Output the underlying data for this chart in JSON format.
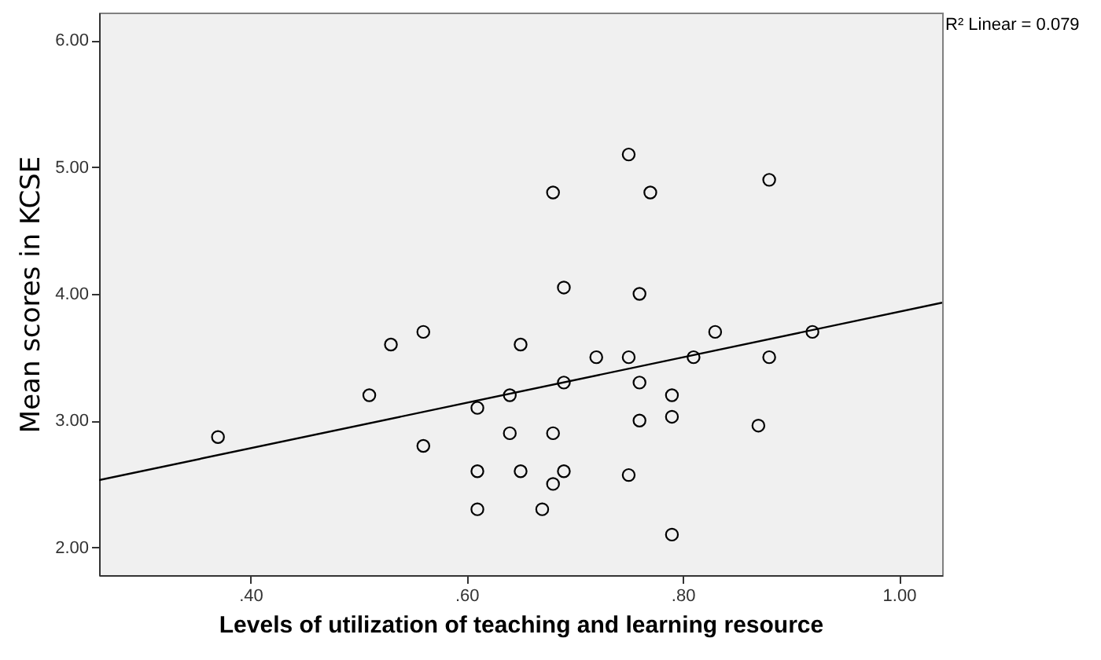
{
  "chart_data": {
    "type": "scatter",
    "xlabel": "Levels of utilization of teaching and learning resource",
    "ylabel": "Mean scores in KCSE",
    "annotations": [
      "R² Linear = 0.079"
    ],
    "xlim": [
      0.26,
      1.04
    ],
    "ylim": [
      1.78,
      6.22
    ],
    "xticks": [
      {
        "value": 0.4,
        "label": ".40"
      },
      {
        "value": 0.6,
        "label": ".60"
      },
      {
        "value": 0.8,
        "label": ".80"
      },
      {
        "value": 1.0,
        "label": "1.00"
      }
    ],
    "yticks": [
      {
        "value": 2,
        "label": "2.00"
      },
      {
        "value": 3,
        "label": "3.00"
      },
      {
        "value": 4,
        "label": "4.00"
      },
      {
        "value": 5,
        "label": "5.00"
      },
      {
        "value": 6,
        "label": "6.00"
      }
    ],
    "marker": "circle",
    "series": [
      {
        "color": "#000000",
        "x": [
          0.37,
          0.51,
          0.53,
          0.56,
          0.56,
          0.61,
          0.61,
          0.61,
          0.64,
          0.64,
          0.65,
          0.65,
          0.67,
          0.68,
          0.68,
          0.68,
          0.69,
          0.69,
          0.69,
          0.72,
          0.75,
          0.75,
          0.75,
          0.76,
          0.76,
          0.76,
          0.77,
          0.79,
          0.79,
          0.79,
          0.81,
          0.83,
          0.87,
          0.88,
          0.88,
          0.92
        ],
        "values": [
          2.87,
          3.2,
          3.6,
          3.7,
          2.8,
          3.1,
          2.6,
          2.3,
          3.2,
          2.9,
          3.6,
          2.6,
          2.3,
          2.5,
          2.9,
          4.8,
          4.05,
          3.3,
          2.6,
          3.5,
          5.1,
          3.5,
          2.57,
          3.3,
          3.0,
          4.0,
          4.8,
          3.2,
          3.03,
          2.1,
          3.5,
          3.7,
          2.96,
          4.9,
          3.5,
          3.7
        ]
      },
      {
        "type": "line",
        "color": "#000000",
        "line_style": "solid",
        "marker": "none",
        "x": [
          0.26,
          1.04
        ],
        "values": [
          2.53,
          3.93
        ]
      }
    ]
  }
}
